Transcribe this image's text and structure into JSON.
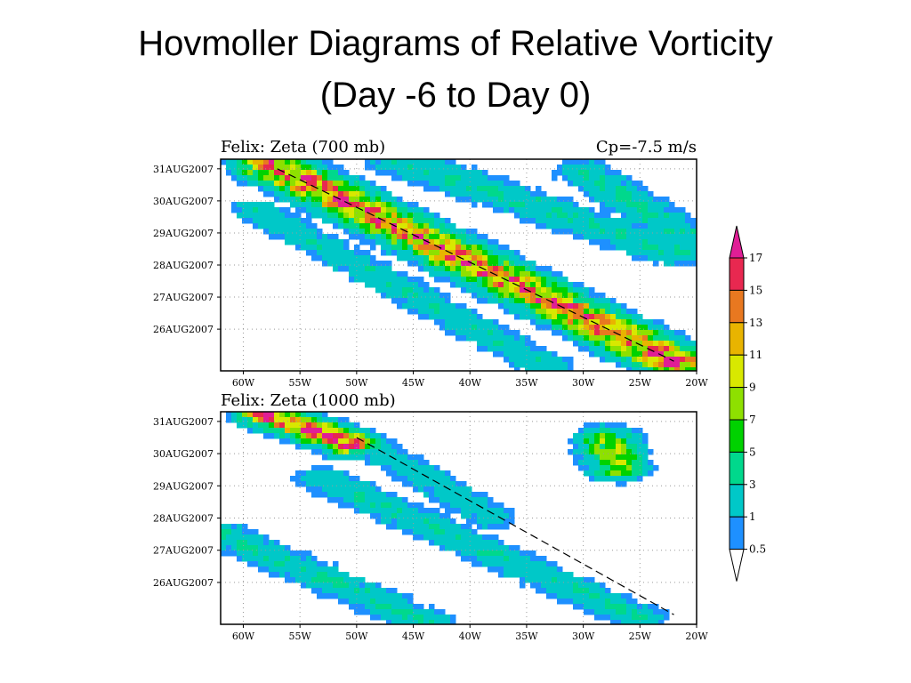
{
  "slide": {
    "title_line1": "Hovmoller Diagrams of Relative Vorticity",
    "title_line2": "(Day -6 to Day 0)"
  },
  "colors": {
    "levels": [
      "#1e90ff",
      "#00c8c8",
      "#00d88c",
      "#00d200",
      "#8ee000",
      "#d8e800",
      "#e8b400",
      "#e87820",
      "#e82850",
      "#e01e96"
    ]
  },
  "chart_data": [
    {
      "type": "heatmap",
      "title": "Felix: Zeta (700 mb)",
      "subtitle": "Cp=-7.5 m/s",
      "x_ticks": [
        "60W",
        "55W",
        "50W",
        "45W",
        "40W",
        "35W",
        "30W",
        "25W",
        "20W"
      ],
      "y_ticks": [
        "31AUG2007",
        "30AUG2007",
        "29AUG2007",
        "28AUG2007",
        "27AUG2007",
        "26AUG2007"
      ],
      "xlim": [
        -62,
        -20
      ],
      "ylim_days": [
        -6.3,
        0.3
      ],
      "grid": true,
      "reference_line": {
        "from": {
          "lon": -57.0,
          "day": 0.0
        },
        "to": {
          "lon": -22.0,
          "day": -6.0
        },
        "style": "dashed"
      },
      "features": [
        {
          "name": "main",
          "start": {
            "lon": -57.5,
            "day": 0.1
          },
          "end": {
            "lon": -21.5,
            "day": -6.1
          },
          "width": 1.7,
          "peak": 14
        },
        {
          "name": "parallel",
          "start": {
            "lon": -59.0,
            "day": -1.3
          },
          "end": {
            "lon": -33.0,
            "day": -6.2
          },
          "width": 1.3,
          "peak": 2.4
        },
        {
          "name": "upper-right",
          "start": {
            "lon": -46.0,
            "day": 0.2
          },
          "end": {
            "lon": -22.0,
            "day": -2.6
          },
          "width": 1.6,
          "peak": 3.0
        },
        {
          "name": "far-right",
          "start": {
            "lon": -30.0,
            "day": -0.1
          },
          "end": {
            "lon": -20.5,
            "day": -2.2
          },
          "width": 1.4,
          "peak": 3.2
        }
      ]
    },
    {
      "type": "heatmap",
      "title": "Felix: Zeta (1000 mb)",
      "x_ticks": [
        "60W",
        "55W",
        "50W",
        "45W",
        "40W",
        "35W",
        "30W",
        "25W",
        "20W"
      ],
      "y_ticks": [
        "31AUG2007",
        "30AUG2007",
        "29AUG2007",
        "28AUG2007",
        "27AUG2007",
        "26AUG2007"
      ],
      "xlim": [
        -62,
        -20
      ],
      "ylim_days": [
        -6.3,
        0.3
      ],
      "grid": true,
      "reference_line": {
        "from": {
          "lon": -50.0,
          "day": -0.5
        },
        "to": {
          "lon": -22.0,
          "day": -6.0
        },
        "style": "dashed"
      },
      "features": [
        {
          "name": "main",
          "start": {
            "lon": -58.0,
            "day": 0.2
          },
          "end": {
            "lon": -50.5,
            "day": -0.7
          },
          "width": 1.3,
          "peak": 16
        },
        {
          "name": "band-a",
          "start": {
            "lon": -51.0,
            "day": -0.3
          },
          "end": {
            "lon": -38.0,
            "day": -3.0
          },
          "width": 1.3,
          "peak": 2.2
        },
        {
          "name": "band-b",
          "start": {
            "lon": -62.0,
            "day": -3.5
          },
          "end": {
            "lon": -44.0,
            "day": -6.2
          },
          "width": 1.4,
          "peak": 2.8
        },
        {
          "name": "band-c",
          "start": {
            "lon": -53.0,
            "day": -1.8
          },
          "end": {
            "lon": -25.0,
            "day": -6.1
          },
          "width": 1.4,
          "peak": 2.6
        },
        {
          "name": "blob",
          "start": {
            "lon": -28.0,
            "day": -0.6
          },
          "end": {
            "lon": -27.0,
            "day": -1.4
          },
          "width": 1.5,
          "peak": 8
        }
      ]
    }
  ],
  "colorbar": {
    "labels": [
      "17",
      "15",
      "13",
      "11",
      "9",
      "7",
      "5",
      "3",
      "1",
      "0.5"
    ]
  }
}
